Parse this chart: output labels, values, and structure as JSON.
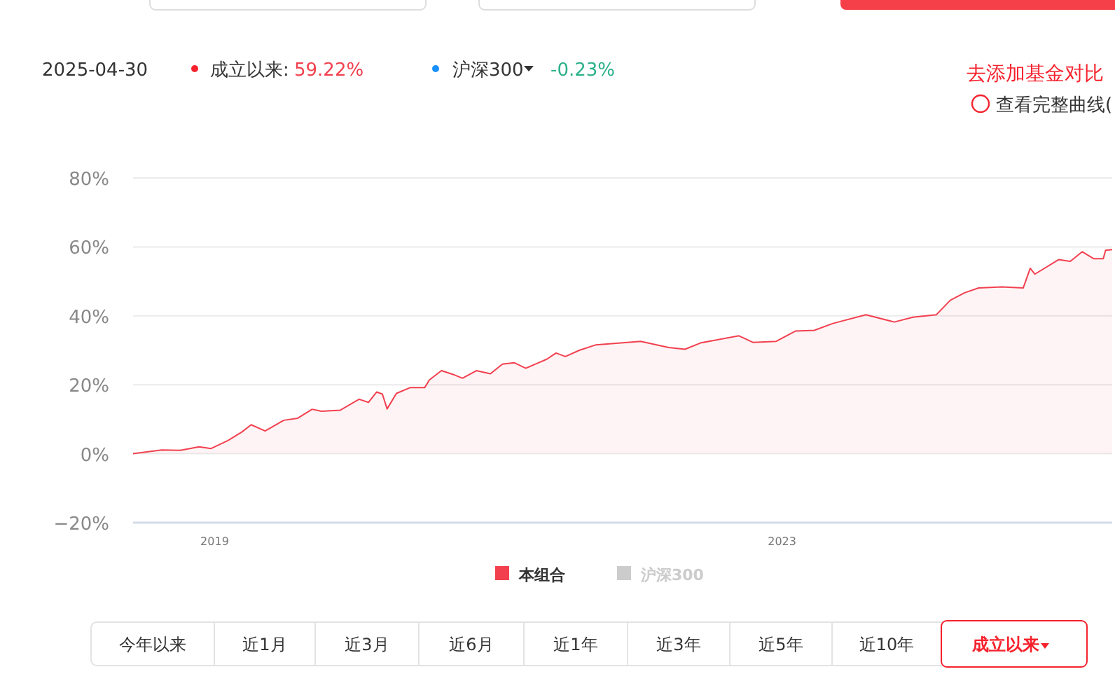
{
  "chart_data": {
    "type": "area",
    "x": [
      "2018-06-05",
      "2018-08-18",
      "2018-10-05",
      "2018-11-22",
      "2018-12-23",
      "2019-02-04",
      "2019-03-12",
      "2019-04-05",
      "2019-05-11",
      "2019-06-28",
      "2019-08-03",
      "2019-09-09",
      "2019-10-03",
      "2019-11-20",
      "2020-01-08",
      "2020-02-01",
      "2020-02-22",
      "2020-03-08",
      "2020-03-20",
      "2020-04-13",
      "2020-05-19",
      "2020-06-25",
      "2020-07-07",
      "2020-08-07",
      "2020-09-06",
      "2020-09-30",
      "2020-11-05",
      "2020-12-11",
      "2021-01-11",
      "2021-02-10",
      "2021-03-12",
      "2021-05-05",
      "2021-05-29",
      "2021-06-22",
      "2021-07-28",
      "2021-09-09",
      "2022-01-02",
      "2022-03-15",
      "2022-04-26",
      "2022-06-07",
      "2022-09-12",
      "2022-10-18",
      "2022-12-17",
      "2023-02-05",
      "2023-03-25",
      "2023-05-12",
      "2023-08-05",
      "2023-10-17",
      "2023-12-04",
      "2024-02-02",
      "2024-03-09",
      "2024-04-15",
      "2024-05-21",
      "2024-07-20",
      "2024-09-13",
      "2024-10-01",
      "2024-10-13",
      "2024-12-13",
      "2025-01-12",
      "2025-02-12",
      "2025-03-13",
      "2025-04-07",
      "2025-04-13",
      "2025-04-30"
    ],
    "series": [
      {
        "name": "本组合",
        "color": "#f2404f",
        "values": [
          0,
          1.1,
          1,
          2,
          1.5,
          3.8,
          6.3,
          8.4,
          6.6,
          9.7,
          10.3,
          12.9,
          12.3,
          12.6,
          15.8,
          14.9,
          17.9,
          17.3,
          13,
          17.5,
          19.2,
          19.2,
          21.4,
          24.1,
          23,
          21.9,
          24.1,
          23.2,
          26,
          26.4,
          24.8,
          27.4,
          29.2,
          28.2,
          30,
          31.6,
          32.6,
          30.8,
          30.3,
          32.2,
          34.2,
          32.3,
          32.6,
          35.6,
          35.8,
          37.8,
          40.3,
          38.2,
          39.6,
          40.3,
          44.5,
          46.7,
          48.1,
          48.4,
          48.1,
          53.8,
          52.1,
          56.3,
          55.8,
          58.6,
          56.6,
          56.6,
          59,
          59.2
        ]
      },
      {
        "name": "沪深300",
        "color": "#cccccc",
        "values": [
          null,
          null,
          null,
          null,
          null,
          null,
          null,
          null,
          null,
          null,
          null,
          null,
          null,
          null,
          null,
          null,
          null,
          null,
          null,
          null,
          null,
          null,
          null,
          null,
          null,
          null,
          null,
          null,
          null,
          null,
          null,
          null,
          null,
          null,
          null,
          null,
          null,
          null,
          null,
          null,
          null,
          null,
          null,
          null,
          null,
          null,
          null,
          null,
          null,
          null,
          null,
          null,
          null,
          null,
          null,
          null,
          null,
          null,
          null,
          null,
          null,
          null,
          null,
          null
        ]
      }
    ],
    "xlim": [
      "2018-06-05",
      "2025-04-30"
    ],
    "xticks": [
      "2019",
      "2023"
    ],
    "ylim": [
      -20,
      80
    ],
    "yticks": [
      {
        "value": -20,
        "label": "−20%"
      },
      {
        "value": 0,
        "label": "0%"
      },
      {
        "value": 20,
        "label": "20%"
      },
      {
        "value": 40,
        "label": "40%"
      },
      {
        "value": 60,
        "label": "60%"
      },
      {
        "value": 80,
        "label": "80%"
      }
    ],
    "grid": "y",
    "legend": "bottom",
    "annotations": [
      "2025-04-30",
      "成立以来:",
      "59.22%",
      "沪深300",
      "-0.23%",
      "去添加基金对比",
      "查看完整曲线(",
      "今年以来",
      "近1月",
      "近3月",
      "近6月",
      "近1年",
      "近3年",
      "近5年",
      "近10年",
      "成立以来"
    ]
  }
}
